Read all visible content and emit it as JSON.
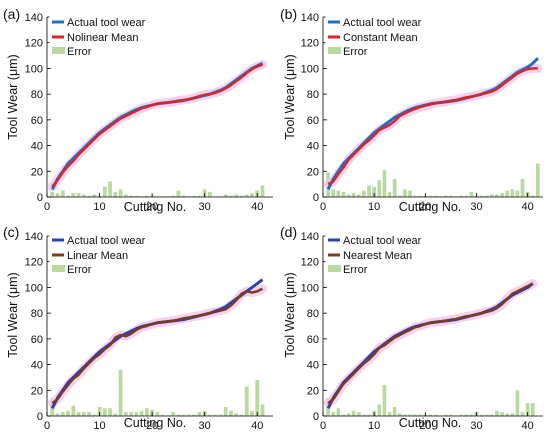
{
  "figure": {
    "panels": [
      {
        "letter": "(a)",
        "legend": [
          "Actual tool wear",
          "Nolinear Mean",
          "Error"
        ]
      },
      {
        "letter": "(b)",
        "legend": [
          "Actual tool wear",
          "Constant Mean",
          "Error"
        ]
      },
      {
        "letter": "(c)",
        "legend": [
          "Actual tool wear",
          "Linear Mean",
          "Error"
        ]
      },
      {
        "letter": "(d)",
        "legend": [
          "Actual tool wear",
          "Nearest Mean",
          "Error"
        ]
      }
    ]
  },
  "chart_data": [
    {
      "type": "line",
      "panel": "(a)",
      "xlabel": "Cutting No.",
      "ylabel": "Tool Wear (μm)",
      "xlim": [
        0,
        43
      ],
      "ylim": [
        0,
        140
      ],
      "xticks": [
        0,
        10,
        20,
        30,
        40
      ],
      "yticks": [
        0,
        20,
        40,
        60,
        80,
        100,
        120,
        140
      ],
      "colors": {
        "actual": "#1f6fc5",
        "predicted": "#d62728",
        "error": "#b9d9a0",
        "band": "#f2c6ee"
      },
      "x": [
        1,
        2,
        3,
        4,
        5,
        6,
        7,
        8,
        9,
        10,
        11,
        12,
        13,
        14,
        15,
        16,
        17,
        18,
        19,
        20,
        21,
        22,
        23,
        24,
        25,
        26,
        27,
        28,
        29,
        30,
        31,
        32,
        33,
        34,
        35,
        36,
        37,
        38,
        39,
        40,
        41
      ],
      "series": [
        {
          "name": "Actual tool wear",
          "values": [
            6,
            14,
            20,
            26,
            30,
            34,
            38,
            42,
            46,
            50,
            53,
            56,
            59,
            62,
            64,
            66,
            68,
            69.5,
            70.5,
            71.5,
            72.5,
            73,
            73.5,
            74,
            74.5,
            75,
            76,
            77,
            78,
            79,
            80,
            81.5,
            83,
            85,
            88,
            91,
            94,
            97,
            100,
            102,
            104
          ]
        },
        {
          "name": "Nolinear Mean",
          "values": [
            8,
            13,
            19,
            24,
            28,
            33,
            37,
            41,
            45,
            49,
            52,
            55,
            58,
            61,
            63,
            65,
            67,
            69,
            70,
            71.5,
            72.5,
            73,
            73.5,
            74,
            75,
            75.5,
            76,
            77,
            78.5,
            79.5,
            80,
            81,
            82.5,
            84.5,
            87,
            90,
            93,
            96.5,
            99.5,
            101.5,
            103
          ]
        },
        {
          "name": "Error",
          "values": [
            4,
            3,
            5,
            1,
            3,
            3,
            2,
            1,
            2,
            1,
            8,
            12,
            4,
            6,
            2,
            1,
            1,
            0.5,
            1,
            1,
            0.5,
            0.5,
            0.5,
            1,
            5,
            1,
            0.5,
            1,
            1,
            6,
            4,
            0.5,
            0.5,
            2,
            1,
            2,
            1,
            2,
            3,
            5,
            9
          ]
        }
      ]
    },
    {
      "type": "line",
      "panel": "(b)",
      "xlabel": "Cutting No.",
      "ylabel": "Tool Wear (μm)",
      "xlim": [
        0,
        43
      ],
      "ylim": [
        0,
        140
      ],
      "xticks": [
        0,
        10,
        20,
        30,
        40
      ],
      "yticks": [
        0,
        20,
        40,
        60,
        80,
        100,
        120,
        140
      ],
      "colors": {
        "actual": "#1f6fc5",
        "predicted": "#d62728",
        "error": "#b9d9a0",
        "band": "#f2c6ee"
      },
      "x": [
        1,
        2,
        3,
        4,
        5,
        6,
        7,
        8,
        9,
        10,
        11,
        12,
        13,
        14,
        15,
        16,
        17,
        18,
        19,
        20,
        21,
        22,
        23,
        24,
        25,
        26,
        27,
        28,
        29,
        30,
        31,
        32,
        33,
        34,
        35,
        36,
        37,
        38,
        39,
        40,
        41,
        42
      ],
      "series": [
        {
          "name": "Actual tool wear",
          "values": [
            6,
            14,
            20,
            26,
            30,
            34,
            38,
            42,
            46,
            50,
            53,
            56,
            59,
            62,
            64,
            66,
            68,
            69.5,
            70.5,
            71.5,
            72.5,
            73,
            73.5,
            74,
            74.5,
            75,
            76,
            77,
            78,
            79,
            80,
            81.5,
            83,
            85,
            88,
            91,
            94,
            97,
            99,
            101,
            104,
            108
          ]
        },
        {
          "name": "Constant Mean",
          "values": [
            10,
            12,
            18,
            23,
            29,
            33,
            37,
            41,
            44,
            48,
            52,
            54,
            56,
            59,
            63,
            65,
            67,
            68.5,
            70,
            71,
            72,
            73,
            73.5,
            74,
            75,
            75.5,
            76.5,
            77.5,
            78,
            79,
            80,
            81,
            82,
            84,
            87,
            90,
            93,
            96,
            98,
            99.5,
            100,
            100
          ]
        },
        {
          "name": "Error",
          "values": [
            19,
            6,
            5,
            4,
            2,
            3,
            2,
            5,
            9,
            8,
            13,
            21,
            4,
            14,
            1,
            6,
            5,
            1,
            1,
            1,
            1,
            1,
            0.5,
            1,
            1,
            0.5,
            1,
            1,
            4,
            1,
            1,
            1,
            2,
            2,
            3,
            5,
            6,
            5,
            14,
            4,
            1,
            26
          ]
        }
      ]
    },
    {
      "type": "line",
      "panel": "(c)",
      "xlabel": "Cutting No.",
      "ylabel": "Tool Wear (μm)",
      "xlim": [
        0,
        43
      ],
      "ylim": [
        0,
        140
      ],
      "xticks": [
        0,
        10,
        20,
        30,
        40
      ],
      "yticks": [
        0,
        20,
        40,
        60,
        80,
        100,
        120,
        140
      ],
      "colors": {
        "actual": "#2c3fb0",
        "predicted": "#7b3b1f",
        "error": "#b9d9a0",
        "band": "#f2c6ee"
      },
      "x": [
        1,
        2,
        3,
        4,
        5,
        6,
        7,
        8,
        9,
        10,
        11,
        12,
        13,
        14,
        15,
        16,
        17,
        18,
        19,
        20,
        21,
        22,
        23,
        24,
        25,
        26,
        27,
        28,
        29,
        30,
        31,
        32,
        33,
        34,
        35,
        36,
        37,
        38,
        39,
        40,
        41
      ],
      "series": [
        {
          "name": "Actual tool wear",
          "values": [
            6,
            14,
            20,
            26,
            30,
            34,
            38,
            42,
            46,
            50,
            53,
            56,
            59,
            62,
            64,
            66,
            68,
            69.5,
            70.5,
            71.5,
            72.5,
            73,
            73.5,
            74,
            74.5,
            75,
            76,
            77,
            78,
            79,
            80,
            81.5,
            83,
            85,
            88,
            91,
            94,
            97,
            100,
            103,
            106
          ]
        },
        {
          "name": "Linear Mean",
          "values": [
            10,
            13,
            19,
            24,
            29,
            32,
            37,
            41,
            45,
            48,
            52,
            55,
            61,
            63,
            62,
            64,
            67,
            69,
            70,
            71.5,
            72.5,
            73,
            73.5,
            74,
            75,
            76,
            76.5,
            77.5,
            78,
            79,
            80,
            81,
            82,
            83,
            86,
            90,
            95,
            97,
            96,
            97,
            99
          ]
        },
        {
          "name": "Error",
          "values": [
            14,
            2,
            3,
            4,
            8,
            3,
            3,
            3,
            1,
            7,
            6,
            6,
            2,
            36,
            3,
            3,
            3,
            4,
            6,
            5,
            3,
            1,
            0.5,
            3,
            1,
            1,
            1,
            1,
            3,
            4,
            1,
            1,
            1,
            7,
            4,
            2,
            1,
            23,
            4,
            28,
            9
          ]
        }
      ]
    },
    {
      "type": "line",
      "panel": "(d)",
      "xlabel": "Cutting No.",
      "ylabel": "Tool Wear (μm)",
      "xlim": [
        0,
        43
      ],
      "ylim": [
        0,
        140
      ],
      "xticks": [
        0,
        10,
        20,
        30,
        40
      ],
      "yticks": [
        0,
        20,
        40,
        60,
        80,
        100,
        120,
        140
      ],
      "colors": {
        "actual": "#2c3fb0",
        "predicted": "#7b3b1f",
        "error": "#b9d9a0",
        "band": "#f2c6ee"
      },
      "x": [
        1,
        2,
        3,
        4,
        5,
        6,
        7,
        8,
        9,
        10,
        11,
        12,
        13,
        14,
        15,
        16,
        17,
        18,
        19,
        20,
        21,
        22,
        23,
        24,
        25,
        26,
        27,
        28,
        29,
        30,
        31,
        32,
        33,
        34,
        35,
        36,
        37,
        38,
        39,
        40,
        41
      ],
      "series": [
        {
          "name": "Actual tool wear",
          "values": [
            6,
            14,
            20,
            26,
            30,
            34,
            38,
            42,
            46,
            50,
            53,
            56,
            59,
            62,
            64,
            66,
            68,
            69.5,
            70.5,
            71.5,
            72.5,
            73,
            73.5,
            74,
            74.5,
            75,
            76,
            77,
            78,
            79,
            80,
            81.5,
            83,
            85,
            88,
            91,
            94,
            96,
            98,
            100,
            103
          ]
        },
        {
          "name": "Nearest Mean",
          "values": [
            10,
            13,
            19,
            25,
            29,
            33,
            37,
            41,
            44,
            48,
            53,
            55,
            58,
            61,
            63,
            65,
            67,
            69,
            70,
            71.5,
            72.5,
            73,
            73.5,
            74,
            75,
            75.5,
            76.5,
            77.5,
            78,
            79,
            80,
            81,
            82,
            84,
            87,
            91,
            95,
            97,
            99,
            101,
            103
          ]
        },
        {
          "name": "Error",
          "values": [
            14,
            3,
            6,
            1,
            2,
            4,
            3,
            1,
            1,
            4,
            9,
            24,
            3,
            7,
            2,
            1,
            1,
            1,
            1,
            1,
            1,
            1,
            0.5,
            1,
            1,
            0.5,
            1,
            1,
            1,
            3,
            1,
            1,
            1,
            4,
            3,
            2,
            2,
            20,
            3,
            10,
            10
          ]
        }
      ]
    }
  ]
}
